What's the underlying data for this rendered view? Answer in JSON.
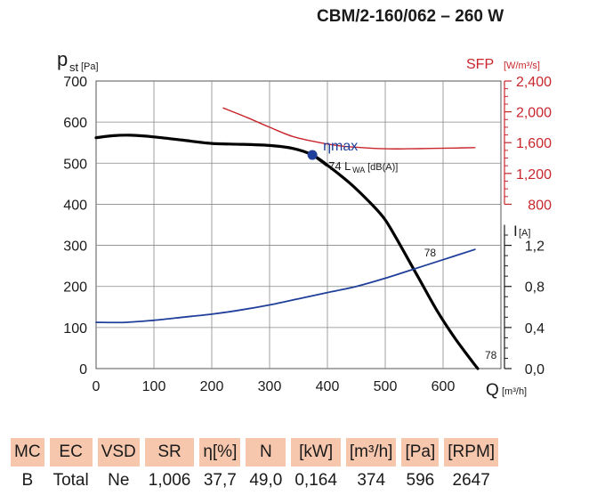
{
  "chart_data": {
    "type": "line",
    "title": "CBM/2-160/062 – 260 W",
    "x_axis": {
      "label": "Q",
      "unit": "[m³/h]",
      "range": [
        0,
        700
      ],
      "ticks": [
        "0",
        "100",
        "200",
        "300",
        "400",
        "500",
        "600"
      ]
    },
    "y_axis_left": {
      "label": "p",
      "label_sub": "st",
      "unit": "[Pa]",
      "range": [
        0,
        700
      ],
      "ticks": [
        "0",
        "100",
        "200",
        "300",
        "400",
        "500",
        "600",
        "700"
      ]
    },
    "y_axis_sfp": {
      "label": "SFP",
      "unit": "[W/m³/s]",
      "range": [
        800,
        2400
      ],
      "ticks": [
        "800",
        "1,200",
        "1,600",
        "2,000",
        "2,400"
      ],
      "color": "#c8262c"
    },
    "y_axis_current": {
      "label": "I",
      "unit": "[A]",
      "range": [
        0,
        1.4
      ],
      "ticks": [
        "0,0",
        "0,4",
        "0,8",
        "1,2"
      ]
    },
    "series": [
      {
        "key": "pressure",
        "axis": "left",
        "color": "#000000",
        "x": [
          0,
          30,
          60,
          100,
          150,
          200,
          250,
          300,
          340,
          374,
          400,
          440,
          480,
          500,
          520,
          540,
          560,
          590,
          620,
          650,
          660
        ],
        "y": [
          562,
          567,
          568,
          564,
          556,
          548,
          546,
          543,
          536,
          520,
          495,
          450,
          395,
          362,
          315,
          265,
          215,
          140,
          75,
          18,
          0
        ]
      },
      {
        "key": "sfp",
        "axis": "sfp",
        "color": "#c8262c",
        "x": [
          220,
          260,
          300,
          340,
          380,
          420,
          460,
          500,
          540,
          580,
          620,
          655
        ],
        "y": [
          2050,
          1930,
          1800,
          1680,
          1610,
          1560,
          1535,
          1520,
          1520,
          1525,
          1530,
          1535
        ]
      },
      {
        "key": "current",
        "axis": "current",
        "color": "#1f3f9a",
        "x": [
          0,
          50,
          100,
          150,
          200,
          250,
          300,
          350,
          400,
          450,
          500,
          550,
          600,
          655
        ],
        "y": [
          0.45,
          0.45,
          0.47,
          0.5,
          0.53,
          0.57,
          0.62,
          0.68,
          0.74,
          0.8,
          0.88,
          0.97,
          1.06,
          1.16
        ]
      }
    ],
    "annotations": [
      {
        "key": "eta",
        "text": "ηmax",
        "x": 374,
        "y": 520
      },
      {
        "key": "lwa",
        "text": "74 L",
        "sub": "WA",
        "tail": "[dB(A)]",
        "x": 374,
        "y": 520
      },
      {
        "key": "n78a",
        "text": "78",
        "x": 558,
        "y": 282
      },
      {
        "key": "n78b",
        "text": "78",
        "x": 660,
        "y": 20
      }
    ],
    "grid": true,
    "legend": "none"
  },
  "table": {
    "headers": [
      "MC",
      "EC",
      "VSD",
      "SR",
      "η[%]",
      "N",
      "[kW]",
      "[m³/h]",
      "[Pa]",
      "[RPM]"
    ],
    "values": [
      "B",
      "Total",
      "Ne",
      "1,006",
      "37,7",
      "49,0",
      "0,164",
      "374",
      "596",
      "2647"
    ]
  }
}
